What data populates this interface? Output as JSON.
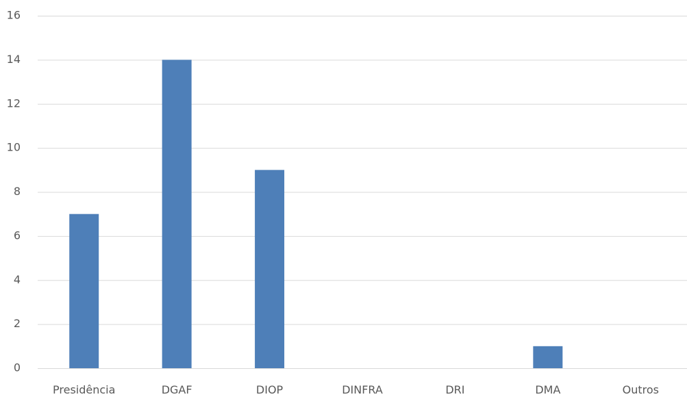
{
  "chart_data": {
    "type": "bar",
    "title": "",
    "xlabel": "",
    "ylabel": "",
    "categories": [
      "Presidência",
      "DGAF",
      "DIOP",
      "DINFRA",
      "DRI",
      "DMA",
      "Outros"
    ],
    "values": [
      7,
      14,
      9,
      0,
      0,
      1,
      0
    ],
    "ylim": [
      0,
      16
    ],
    "yticks": [
      "0",
      "2",
      "4",
      "6",
      "8",
      "10",
      "12",
      "14",
      "16"
    ],
    "grid": true,
    "legend": "none",
    "bar_color": "#4e7fb8",
    "grid_color": "#d9d9d9",
    "text_color": "#595959"
  }
}
